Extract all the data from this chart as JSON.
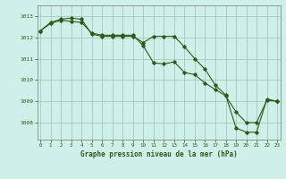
{
  "line1": {
    "x": [
      0,
      1,
      2,
      3,
      4,
      5,
      6,
      7,
      8,
      9,
      10,
      11,
      12,
      13,
      14,
      15,
      16,
      17,
      18,
      19,
      20,
      21,
      22,
      23
    ],
    "y": [
      1012.3,
      1012.7,
      1012.85,
      1012.9,
      1012.85,
      1012.15,
      1012.05,
      1012.05,
      1012.05,
      1012.05,
      1011.75,
      1012.05,
      1012.05,
      1012.05,
      1011.55,
      1011.0,
      1010.5,
      1009.75,
      1009.3,
      1007.75,
      1007.55,
      1007.55,
      1009.1,
      1009.0
    ]
  },
  "line2": {
    "x": [
      0,
      1,
      2,
      3,
      4,
      5,
      6,
      7,
      8,
      9,
      10,
      11,
      12,
      13,
      14,
      15,
      16,
      17,
      18,
      19,
      20,
      21,
      22,
      23
    ],
    "y": [
      1012.3,
      1012.65,
      1012.8,
      1012.75,
      1012.7,
      1012.2,
      1012.1,
      1012.1,
      1012.1,
      1012.1,
      1011.6,
      1010.8,
      1010.75,
      1010.85,
      1010.35,
      1010.25,
      1009.85,
      1009.55,
      1009.25,
      1008.5,
      1008.0,
      1008.0,
      1009.05,
      1009.0
    ]
  },
  "line_color": "#2d5a1b",
  "bg_color": "#cff0e8",
  "grid_color": "#a0ccbb",
  "ylabel_ticks": [
    1008,
    1009,
    1010,
    1011,
    1012,
    1013
  ],
  "ylim": [
    1007.2,
    1013.5
  ],
  "xlim": [
    -0.3,
    23.3
  ],
  "xlabel": "Graphe pression niveau de la mer (hPa)",
  "xticks": [
    0,
    1,
    2,
    3,
    4,
    5,
    6,
    7,
    8,
    9,
    10,
    11,
    12,
    13,
    14,
    15,
    16,
    17,
    18,
    19,
    20,
    21,
    22,
    23
  ]
}
